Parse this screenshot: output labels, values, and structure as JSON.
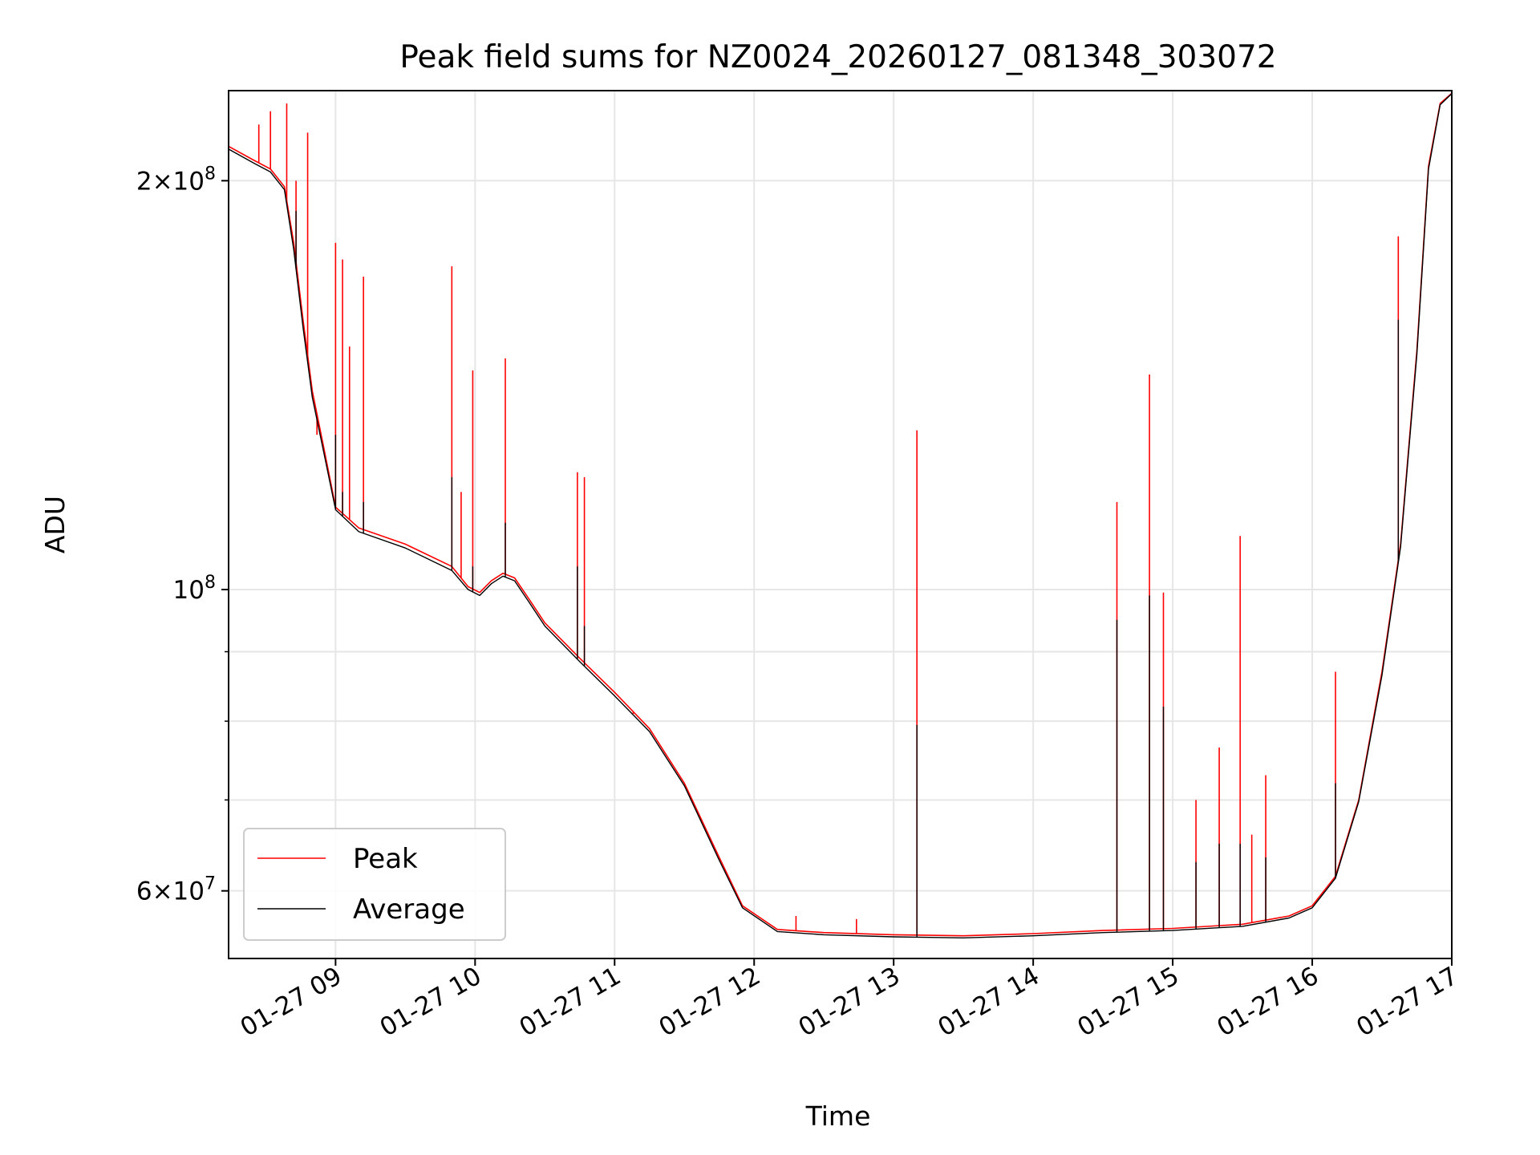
{
  "chart_data": {
    "type": "line",
    "title": "Peak field sums for NZ0024_20260127_081348_303072",
    "xlabel": "Time",
    "ylabel": "ADU",
    "yscale": "log",
    "xlim": [
      "2026-01-27T08:14",
      "2026-01-27T17:00"
    ],
    "ylim": [
      53500000,
      233000000
    ],
    "grid": true,
    "legend_position": "lower-left",
    "x_tick_labels": [
      "01-27 09",
      "01-27 10",
      "01-27 11",
      "01-27 12",
      "01-27 13",
      "01-27 14",
      "01-27 15",
      "01-27 16",
      "01-27 17"
    ],
    "x_ticks": [
      "2026-01-27T09:00",
      "2026-01-27T10:00",
      "2026-01-27T11:00",
      "2026-01-27T12:00",
      "2026-01-27T13:00",
      "2026-01-27T14:00",
      "2026-01-27T15:00",
      "2026-01-27T16:00",
      "2026-01-27T17:00"
    ],
    "y_tick_labels": [
      {
        "value": 200000000,
        "mantissa": "2",
        "exponent": "8"
      },
      {
        "value": 100000000,
        "mantissa": "",
        "exponent": "8"
      },
      {
        "value": 60000000,
        "mantissa": "6",
        "exponent": "7"
      }
    ],
    "y_minor_ticks": [
      70000000,
      80000000,
      90000000
    ],
    "series": [
      {
        "name": "Peak",
        "color": "#ff0000",
        "baseline": [
          [
            "08:14",
            212000000
          ],
          [
            "08:25",
            207000000
          ],
          [
            "08:32",
            204000000
          ],
          [
            "08:38",
            198000000
          ],
          [
            "08:42",
            180000000
          ],
          [
            "08:46",
            158000000
          ],
          [
            "08:50",
            140000000
          ],
          [
            "08:55",
            127000000
          ],
          [
            "09:00",
            115000000
          ],
          [
            "09:10",
            111000000
          ],
          [
            "09:30",
            108000000
          ],
          [
            "09:50",
            104000000
          ],
          [
            "09:57",
            100500000
          ],
          [
            "10:02",
            99500000
          ],
          [
            "10:07",
            101500000
          ],
          [
            "10:12",
            102800000
          ],
          [
            "10:17",
            102000000
          ],
          [
            "10:23",
            98500000
          ],
          [
            "10:30",
            94500000
          ],
          [
            "10:45",
            89000000
          ],
          [
            "11:00",
            84000000
          ],
          [
            "11:15",
            79000000
          ],
          [
            "11:30",
            72000000
          ],
          [
            "11:45",
            63500000
          ],
          [
            "11:55",
            58500000
          ],
          [
            "12:10",
            56200000
          ],
          [
            "12:30",
            55900000
          ],
          [
            "13:00",
            55700000
          ],
          [
            "13:30",
            55600000
          ],
          [
            "14:00",
            55800000
          ],
          [
            "14:30",
            56100000
          ],
          [
            "15:00",
            56300000
          ],
          [
            "15:30",
            56700000
          ],
          [
            "15:50",
            57500000
          ],
          [
            "16:00",
            58500000
          ],
          [
            "16:10",
            61500000
          ],
          [
            "16:20",
            70000000
          ],
          [
            "16:30",
            87000000
          ],
          [
            "16:38",
            108000000
          ],
          [
            "16:45",
            150000000
          ],
          [
            "16:50",
            205000000
          ],
          [
            "16:55",
            228000000
          ],
          [
            "17:00",
            232000000
          ]
        ],
        "spikes": [
          [
            "08:27",
            220000000
          ],
          [
            "08:32",
            225000000
          ],
          [
            "08:39",
            228000000
          ],
          [
            "08:43",
            200000000
          ],
          [
            "08:48",
            217000000
          ],
          [
            "08:52",
            130000000
          ],
          [
            "09:00",
            180000000
          ],
          [
            "09:03",
            175000000
          ],
          [
            "09:06",
            151000000
          ],
          [
            "09:12",
            170000000
          ],
          [
            "09:50",
            173000000
          ],
          [
            "09:54",
            118000000
          ],
          [
            "09:59",
            145000000
          ],
          [
            "10:13",
            148000000
          ],
          [
            "10:44",
            122000000
          ],
          [
            "10:47",
            121000000
          ],
          [
            "11:08",
            81000000
          ],
          [
            "12:18",
            57500000
          ],
          [
            "12:44",
            57200000
          ],
          [
            "13:10",
            131000000
          ],
          [
            "14:36",
            116000000
          ],
          [
            "14:50",
            144000000
          ],
          [
            "14:56",
            99500000
          ],
          [
            "15:10",
            70000000
          ],
          [
            "15:20",
            76500000
          ],
          [
            "15:29",
            109500000
          ],
          [
            "15:34",
            66000000
          ],
          [
            "15:40",
            73000000
          ],
          [
            "16:10",
            87000000
          ],
          [
            "16:37",
            182000000
          ]
        ]
      },
      {
        "name": "Average",
        "color": "#000000",
        "baseline": [
          [
            "08:14",
            211000000
          ],
          [
            "08:25",
            206000000
          ],
          [
            "08:32",
            203000000
          ],
          [
            "08:38",
            197000000
          ],
          [
            "08:42",
            178000000
          ],
          [
            "08:46",
            156000000
          ],
          [
            "08:50",
            138500000
          ],
          [
            "08:55",
            126000000
          ],
          [
            "09:00",
            114500000
          ],
          [
            "09:10",
            110300000
          ],
          [
            "09:30",
            107300000
          ],
          [
            "09:50",
            103300000
          ],
          [
            "09:57",
            100000000
          ],
          [
            "10:02",
            99000000
          ],
          [
            "10:07",
            101000000
          ],
          [
            "10:12",
            102300000
          ],
          [
            "10:17",
            101500000
          ],
          [
            "10:23",
            98000000
          ],
          [
            "10:30",
            94000000
          ],
          [
            "10:45",
            88500000
          ],
          [
            "11:00",
            83500000
          ],
          [
            "11:15",
            78600000
          ],
          [
            "11:30",
            71700000
          ],
          [
            "11:45",
            63200000
          ],
          [
            "11:55",
            58300000
          ],
          [
            "12:10",
            56000000
          ],
          [
            "12:30",
            55700000
          ],
          [
            "13:00",
            55500000
          ],
          [
            "13:30",
            55400000
          ],
          [
            "14:00",
            55600000
          ],
          [
            "14:30",
            55900000
          ],
          [
            "15:00",
            56100000
          ],
          [
            "15:30",
            56500000
          ],
          [
            "15:50",
            57300000
          ],
          [
            "16:00",
            58300000
          ],
          [
            "16:10",
            61300000
          ],
          [
            "16:20",
            69800000
          ],
          [
            "16:30",
            86500000
          ],
          [
            "16:38",
            107500000
          ],
          [
            "16:45",
            149000000
          ],
          [
            "16:50",
            204000000
          ],
          [
            "16:55",
            227500000
          ],
          [
            "17:00",
            231800000
          ]
        ],
        "spikes": [
          [
            "08:43",
            190000000
          ],
          [
            "09:00",
            130000000
          ],
          [
            "09:03",
            118000000
          ],
          [
            "09:12",
            116000000
          ],
          [
            "09:50",
            121000000
          ],
          [
            "09:59",
            104000000
          ],
          [
            "10:13",
            112000000
          ],
          [
            "10:44",
            104000000
          ],
          [
            "10:47",
            94000000
          ],
          [
            "13:10",
            79500000
          ],
          [
            "14:36",
            95000000
          ],
          [
            "14:50",
            99000000
          ],
          [
            "14:56",
            82000000
          ],
          [
            "15:10",
            63000000
          ],
          [
            "15:20",
            65000000
          ],
          [
            "15:29",
            65000000
          ],
          [
            "15:40",
            63500000
          ],
          [
            "16:10",
            72000000
          ],
          [
            "16:37",
            158000000
          ]
        ]
      }
    ]
  }
}
